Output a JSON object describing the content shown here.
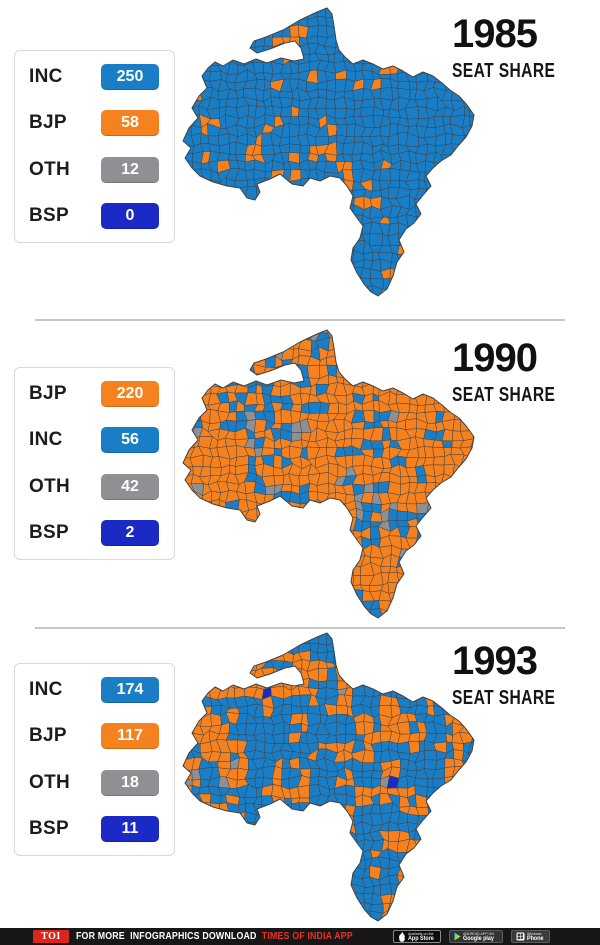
{
  "panels": [
    {
      "year": "1985",
      "subtitle": "SEAT SHARE",
      "legend": [
        {
          "party": "INC",
          "seats": 250,
          "color": "#1a7ec6"
        },
        {
          "party": "BJP",
          "seats": 58,
          "color": "#f5821f"
        },
        {
          "party": "OTH",
          "seats": 12,
          "color": "#8e9093"
        },
        {
          "party": "BSP",
          "seats": 0,
          "color": "#1b2ac4"
        }
      ]
    },
    {
      "year": "1990",
      "subtitle": "SEAT SHARE",
      "legend": [
        {
          "party": "BJP",
          "seats": 220,
          "color": "#f5821f"
        },
        {
          "party": "INC",
          "seats": 56,
          "color": "#1a7ec6"
        },
        {
          "party": "OTH",
          "seats": 42,
          "color": "#8e9093"
        },
        {
          "party": "BSP",
          "seats": 2,
          "color": "#1b2ac4"
        }
      ]
    },
    {
      "year": "1993",
      "subtitle": "SEAT SHARE",
      "legend": [
        {
          "party": "INC",
          "seats": 174,
          "color": "#1a7ec6"
        },
        {
          "party": "BJP",
          "seats": 117,
          "color": "#f5821f"
        },
        {
          "party": "OTH",
          "seats": 18,
          "color": "#8e9093"
        },
        {
          "party": "BSP",
          "seats": 11,
          "color": "#1b2ac4"
        }
      ]
    }
  ],
  "chart_data": [
    {
      "type": "table",
      "title": "1985 SEAT SHARE",
      "categories": [
        "INC",
        "BJP",
        "OTH",
        "BSP"
      ],
      "values": [
        250,
        58,
        12,
        0
      ]
    },
    {
      "type": "table",
      "title": "1990 SEAT SHARE",
      "categories": [
        "BJP",
        "INC",
        "OTH",
        "BSP"
      ],
      "values": [
        220,
        56,
        42,
        2
      ]
    },
    {
      "type": "table",
      "title": "1993 SEAT SHARE",
      "categories": [
        "INC",
        "BJP",
        "OTH",
        "BSP"
      ],
      "values": [
        174,
        117,
        18,
        11
      ]
    }
  ],
  "footer": {
    "logo": "TOI",
    "segments": {
      "for_more": "FOR MORE",
      "infographics": "INFOGRAPHICS DOWNLOAD",
      "app": "TIMES OF INDIA  APP"
    },
    "badges": [
      {
        "top": "Available on the",
        "bottom": "App Store"
      },
      {
        "top": "ANDROID APP ON",
        "bottom": "Google play"
      },
      {
        "top": "Windows",
        "bottom": "Phone"
      }
    ],
    "colors": {
      "bar": "#171717",
      "logo_red": "#d9251c",
      "accent_red": "#e8312a"
    }
  }
}
